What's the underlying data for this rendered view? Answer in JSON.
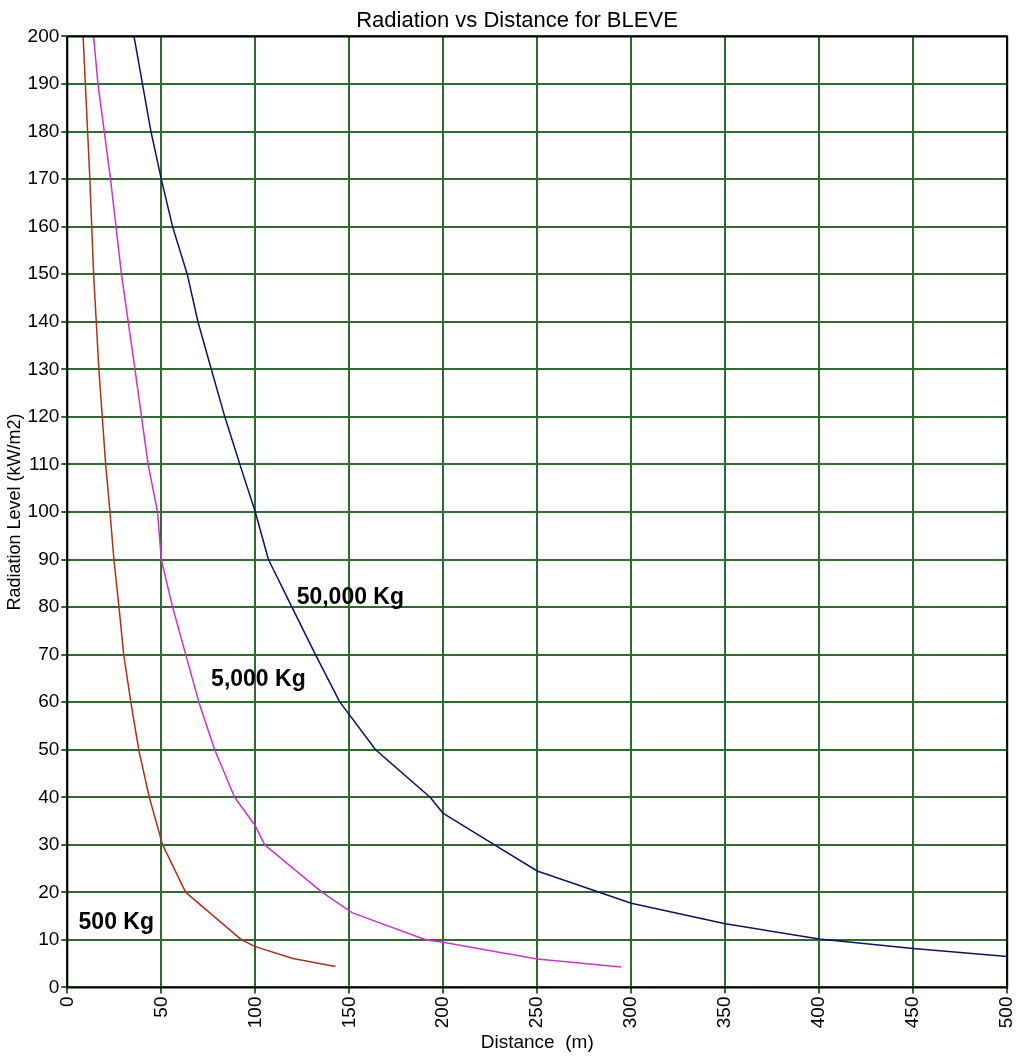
{
  "chart_data": {
    "type": "line",
    "title": "Radiation vs Distance for BLEVE",
    "xlabel": "Distance  (m)",
    "ylabel": "Radiation Level (kW/m2)",
    "xlim": [
      0,
      500
    ],
    "xticks": [
      0,
      50,
      100,
      150,
      200,
      250,
      300,
      350,
      400,
      450,
      500
    ],
    "ylim": [
      0,
      200
    ],
    "yticks": [
      0,
      10,
      20,
      30,
      40,
      50,
      60,
      70,
      80,
      90,
      100,
      110,
      120,
      130,
      140,
      150,
      160,
      170,
      180,
      190,
      200
    ],
    "grid": true,
    "legend": false,
    "marker": "none",
    "line_style": "solid",
    "series": [
      {
        "name": "500 Kg",
        "color": "#b0301a",
        "x": [
          8.4,
          12,
          14,
          16.8,
          20.4,
          22.7,
          24.8,
          27.5,
          30,
          33.8,
          38,
          43.6,
          50.7,
          63,
          92.7,
          100,
          120,
          142.7
        ],
        "values": [
          200,
          170,
          150,
          130,
          110,
          100,
          90,
          80,
          70,
          60,
          50,
          40,
          30,
          20,
          10,
          8.6,
          6.1,
          4.4
        ]
      },
      {
        "name": "5,000 Kg",
        "color": "#cc33cc",
        "x": [
          14,
          16.3,
          23,
          28.8,
          36,
          43,
          48,
          50,
          56,
          63,
          70,
          78.4,
          89,
          100,
          105,
          135.6,
          151.7,
          191,
          200,
          250,
          294.6
        ],
        "values": [
          200,
          190,
          170,
          150,
          130,
          110,
          100,
          90,
          80,
          70,
          60,
          50,
          40,
          34,
          30,
          20,
          15.7,
          10,
          9.5,
          6,
          4.3
        ]
      },
      {
        "name": "50,000 Kg",
        "color": "#10106b",
        "x": [
          35.5,
          44.5,
          50,
          56,
          63.8,
          69.5,
          76.6,
          83.8,
          91.8,
          100,
          107,
          119.5,
          132,
          145,
          164,
          193,
          200,
          250,
          300,
          350,
          400,
          450,
          500
        ],
        "values": [
          200,
          180,
          170,
          160,
          150,
          140,
          130,
          120,
          110,
          100,
          90,
          80,
          70,
          60,
          50,
          40,
          36.6,
          24.5,
          17.7,
          13.4,
          10.2,
          8.2,
          6.5
        ]
      }
    ]
  }
}
